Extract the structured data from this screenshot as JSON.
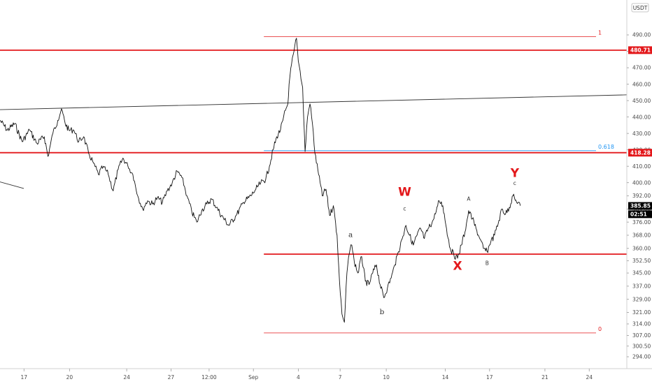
{
  "chart_data": {
    "type": "line",
    "title": "",
    "currency": "USDT",
    "y_ticks": [
      "490.00",
      "480.00",
      "470.00",
      "460.00",
      "450.00",
      "440.00",
      "430.00",
      "420.00",
      "410.00",
      "400.00",
      "392.00",
      "384.00",
      "376.00",
      "368.00",
      "360.00",
      "352.50",
      "345.00",
      "337.00",
      "329.00",
      "321.00",
      "314.00",
      "307.00",
      "300.50",
      "294.00"
    ],
    "x_ticks": [
      "17",
      "20",
      "24",
      "27",
      "12:00",
      "Sep",
      "4",
      "7",
      "10",
      "14",
      "17",
      "21",
      "24"
    ],
    "price_badges": [
      {
        "label": "480.71",
        "value": 480.71,
        "color": "#e3181b"
      },
      {
        "label": "418.28",
        "value": 418.28,
        "color": "#e3181b"
      },
      {
        "label": "385.85",
        "value": 385.85,
        "color": "#000000"
      },
      {
        "label": "02:51",
        "value": 380.8,
        "color": "#000000"
      }
    ],
    "horizontal_levels": [
      {
        "value": 480.71,
        "color": "#e3181b",
        "from": "start"
      },
      {
        "value": 418.28,
        "color": "#e3181b",
        "from": "start"
      },
      {
        "value": 356.5,
        "color": "#e3181b",
        "from": "Sep 1"
      }
    ],
    "fibonacci": [
      {
        "label": "1",
        "value": 489.0,
        "color": "#e3181b"
      },
      {
        "label": "0.618",
        "value": 419.5,
        "color": "#2196f3"
      },
      {
        "label": "0",
        "value": 308.5,
        "color": "#e3181b"
      }
    ],
    "trendlines": [
      {
        "from_date": "2020-08-14",
        "from": 444.5,
        "to_date": "2020-09-24",
        "to": 453.5
      },
      {
        "from_date": "2020-08-14",
        "from": 400.5,
        "to_date": "2020-08-16",
        "to": 396.5
      }
    ],
    "wave_labels": [
      {
        "text": "W",
        "size": "big",
        "color": "#e3181b",
        "date": "2020-09-10T10:00",
        "price": 392.0
      },
      {
        "text": "c",
        "size": "tiny",
        "date": "2020-09-10T10:00",
        "price": 383.0
      },
      {
        "text": "a",
        "size": "small",
        "date": "2020-09-06T18:00",
        "price": 367.0
      },
      {
        "text": "b",
        "size": "small",
        "date": "2020-09-08T21:00",
        "price": 320.0
      },
      {
        "text": "X",
        "size": "big",
        "color": "#e3181b",
        "date": "2020-09-14T00:00",
        "price": 347.0
      },
      {
        "text": "A",
        "size": "tiny",
        "date": "2020-09-14T18:00",
        "price": 389.0
      },
      {
        "text": "B",
        "size": "tiny",
        "date": "2020-09-16T00:00",
        "price": 350.0
      },
      {
        "text": "Y",
        "size": "big",
        "color": "#e3181b",
        "date": "2020-09-17T21:00",
        "price": 403.5
      },
      {
        "text": "c",
        "size": "tiny",
        "date": "2020-09-17T21:00",
        "price": 398.5
      }
    ],
    "series": [
      {
        "points": [
          [
            "2020-08-14T00:00",
            438
          ],
          [
            "2020-08-14T12:00",
            432
          ],
          [
            "2020-08-15T00:00",
            436
          ],
          [
            "2020-08-15T12:00",
            425
          ],
          [
            "2020-08-16T00:00",
            432
          ],
          [
            "2020-08-16T12:00",
            424
          ],
          [
            "2020-08-17T00:00",
            428
          ],
          [
            "2020-08-17T06:00",
            416
          ],
          [
            "2020-08-17T14:00",
            430
          ],
          [
            "2020-08-17T22:00",
            438
          ],
          [
            "2020-08-18T04:00",
            445
          ],
          [
            "2020-08-18T10:00",
            436
          ],
          [
            "2020-08-18T16:00",
            432
          ],
          [
            "2020-08-19T00:00",
            432
          ],
          [
            "2020-08-19T08:00",
            425
          ],
          [
            "2020-08-19T16:00",
            428
          ],
          [
            "2020-08-20T00:00",
            418
          ],
          [
            "2020-08-20T08:00",
            412
          ],
          [
            "2020-08-20T16:00",
            405
          ],
          [
            "2020-08-21T00:00",
            410
          ],
          [
            "2020-08-21T08:00",
            405
          ],
          [
            "2020-08-21T16:00",
            395
          ],
          [
            "2020-08-22T00:00",
            408
          ],
          [
            "2020-08-22T08:00",
            415
          ],
          [
            "2020-08-22T16:00",
            410
          ],
          [
            "2020-08-23T00:00",
            405
          ],
          [
            "2020-08-23T08:00",
            392
          ],
          [
            "2020-08-23T16:00",
            384
          ],
          [
            "2020-08-24T00:00",
            389
          ],
          [
            "2020-08-24T08:00",
            387
          ],
          [
            "2020-08-24T16:00",
            391
          ],
          [
            "2020-08-25T00:00",
            388
          ],
          [
            "2020-08-25T08:00",
            395
          ],
          [
            "2020-08-25T16:00",
            400
          ],
          [
            "2020-08-26T00:00",
            407
          ],
          [
            "2020-08-26T08:00",
            403
          ],
          [
            "2020-08-26T16:00",
            392
          ],
          [
            "2020-08-27T00:00",
            382
          ],
          [
            "2020-08-27T08:00",
            376
          ],
          [
            "2020-08-27T16:00",
            383
          ],
          [
            "2020-08-28T00:00",
            387
          ],
          [
            "2020-08-28T08:00",
            390
          ],
          [
            "2020-08-28T16:00",
            385
          ],
          [
            "2020-08-29T00:00",
            380
          ],
          [
            "2020-08-29T12:00",
            374
          ],
          [
            "2020-08-30T00:00",
            380
          ],
          [
            "2020-08-30T12:00",
            388
          ],
          [
            "2020-08-31T00:00",
            392
          ],
          [
            "2020-08-31T08:00",
            396
          ],
          [
            "2020-08-31T16:00",
            400
          ],
          [
            "2020-09-01T00:00",
            402
          ],
          [
            "2020-09-01T06:00",
            410
          ],
          [
            "2020-09-01T12:00",
            420
          ],
          [
            "2020-09-01T18:00",
            428
          ],
          [
            "2020-09-02T00:00",
            432
          ],
          [
            "2020-09-02T04:00",
            438
          ],
          [
            "2020-09-02T08:00",
            444
          ],
          [
            "2020-09-02T12:00",
            448
          ],
          [
            "2020-09-02T14:00",
            460
          ],
          [
            "2020-09-02T18:00",
            472
          ],
          [
            "2020-09-02T22:00",
            480
          ],
          [
            "2020-09-03T02:00",
            488
          ],
          [
            "2020-09-03T05:00",
            474
          ],
          [
            "2020-09-03T08:00",
            468
          ],
          [
            "2020-09-03T12:00",
            458
          ],
          [
            "2020-09-03T16:00",
            419
          ],
          [
            "2020-09-03T20:00",
            440
          ],
          [
            "2020-09-04T00:00",
            448
          ],
          [
            "2020-09-04T04:00",
            436
          ],
          [
            "2020-09-04T08:00",
            418
          ],
          [
            "2020-09-04T14:00",
            405
          ],
          [
            "2020-09-04T20:00",
            392
          ],
          [
            "2020-09-05T02:00",
            396
          ],
          [
            "2020-09-05T08:00",
            380
          ],
          [
            "2020-09-05T14:00",
            386
          ],
          [
            "2020-09-05T20:00",
            368
          ],
          [
            "2020-09-06T00:00",
            340
          ],
          [
            "2020-09-06T04:00",
            320
          ],
          [
            "2020-09-06T08:00",
            315
          ],
          [
            "2020-09-06T12:00",
            345
          ],
          [
            "2020-09-06T16:00",
            357
          ],
          [
            "2020-09-06T20:00",
            362
          ],
          [
            "2020-09-07T00:00",
            352
          ],
          [
            "2020-09-07T06:00",
            345
          ],
          [
            "2020-09-07T12:00",
            355
          ],
          [
            "2020-09-07T18:00",
            340
          ],
          [
            "2020-09-08T00:00",
            338
          ],
          [
            "2020-09-08T06:00",
            345
          ],
          [
            "2020-09-08T12:00",
            350
          ],
          [
            "2020-09-08T18:00",
            338
          ],
          [
            "2020-09-09T00:00",
            330
          ],
          [
            "2020-09-09T06:00",
            336
          ],
          [
            "2020-09-09T12:00",
            342
          ],
          [
            "2020-09-09T18:00",
            350
          ],
          [
            "2020-09-10T00:00",
            358
          ],
          [
            "2020-09-10T06:00",
            366
          ],
          [
            "2020-09-10T12:00",
            374
          ],
          [
            "2020-09-10T18:00",
            368
          ],
          [
            "2020-09-11T00:00",
            362
          ],
          [
            "2020-09-11T06:00",
            368
          ],
          [
            "2020-09-11T12:00",
            372
          ],
          [
            "2020-09-11T18:00",
            366
          ],
          [
            "2020-09-12T00:00",
            372
          ],
          [
            "2020-09-12T06:00",
            375
          ],
          [
            "2020-09-12T12:00",
            381
          ],
          [
            "2020-09-12T18:00",
            389
          ],
          [
            "2020-09-13T00:00",
            386
          ],
          [
            "2020-09-13T06:00",
            372
          ],
          [
            "2020-09-13T12:00",
            360
          ],
          [
            "2020-09-13T18:00",
            356
          ],
          [
            "2020-09-14T00:00",
            354
          ],
          [
            "2020-09-14T06:00",
            362
          ],
          [
            "2020-09-14T12:00",
            370
          ],
          [
            "2020-09-14T18:00",
            383
          ],
          [
            "2020-09-15T00:00",
            378
          ],
          [
            "2020-09-15T06:00",
            372
          ],
          [
            "2020-09-15T12:00",
            366
          ],
          [
            "2020-09-15T18:00",
            360
          ],
          [
            "2020-09-16T00:00",
            358
          ],
          [
            "2020-09-16T06:00",
            364
          ],
          [
            "2020-09-16T12:00",
            368
          ],
          [
            "2020-09-16T18:00",
            375
          ],
          [
            "2020-09-17T00:00",
            384
          ],
          [
            "2020-09-17T06:00",
            381
          ],
          [
            "2020-09-17T12:00",
            385
          ],
          [
            "2020-09-17T18:00",
            392
          ],
          [
            "2020-09-18T00:00",
            388
          ],
          [
            "2020-09-18T06:00",
            386
          ]
        ]
      }
    ]
  }
}
